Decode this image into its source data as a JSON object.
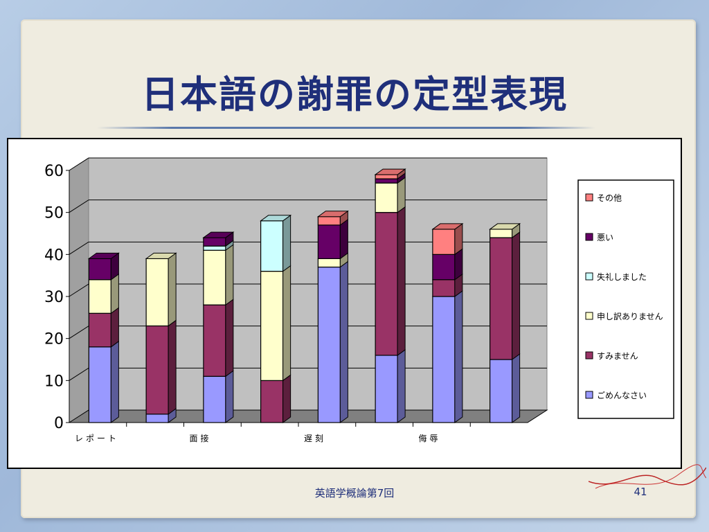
{
  "slide": {
    "title": "日本語の謝罪の定型表現",
    "footer": "英語学概論第7回",
    "page_number": "41"
  },
  "colors": {
    "title": "#1f2f7a",
    "plot_bg": "#c0c0c0",
    "series": [
      "#9999ff",
      "#993366",
      "#ffffcc",
      "#ccffff",
      "#660066",
      "#ff8080"
    ]
  },
  "chart_data": {
    "type": "bar",
    "stacked": true,
    "three_d": true,
    "categories": [
      "レポート",
      "",
      "面接",
      "",
      "遅刻",
      "",
      "侮辱",
      ""
    ],
    "ylim": [
      0,
      60
    ],
    "yticks": [
      "0",
      "10",
      "20",
      "30",
      "40",
      "50",
      "60"
    ],
    "grid": true,
    "legend_position": "right",
    "series": [
      {
        "name": "ごめんなさい",
        "values": [
          18,
          2,
          11,
          0,
          37,
          16,
          30,
          15
        ]
      },
      {
        "name": "すみません",
        "values": [
          8,
          21,
          17,
          10,
          0,
          34,
          4,
          29
        ]
      },
      {
        "name": "申し訳ありません",
        "values": [
          8,
          16,
          13,
          26,
          2,
          7,
          0,
          2
        ]
      },
      {
        "name": "失礼しました",
        "values": [
          0,
          0,
          1,
          12,
          0,
          0,
          0,
          0
        ]
      },
      {
        "name": "悪い",
        "values": [
          5,
          0,
          2,
          0,
          8,
          1,
          6,
          0
        ]
      },
      {
        "name": "その他",
        "values": [
          0,
          0,
          0,
          0,
          2,
          1,
          6,
          0
        ]
      }
    ]
  }
}
